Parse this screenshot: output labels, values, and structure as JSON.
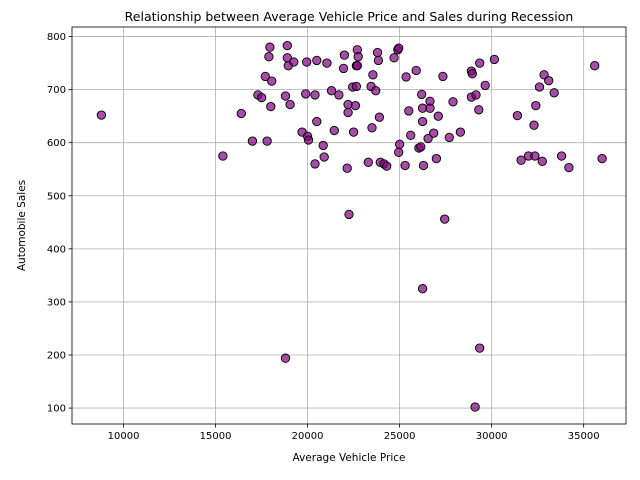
{
  "chart_data": {
    "type": "scatter",
    "title": "Relationship between Average Vehicle Price and Sales during Recession",
    "xlabel": "Average Vehicle Price",
    "ylabel": "Automobile Sales",
    "xlim": [
      7200,
      37300
    ],
    "ylim": [
      70,
      818
    ],
    "xticks": [
      10000,
      15000,
      20000,
      25000,
      30000,
      35000
    ],
    "yticks": [
      100,
      200,
      300,
      400,
      500,
      600,
      700,
      800
    ],
    "grid": true,
    "marker_color": "#800080",
    "marker_edge": "#000000",
    "points": [
      [
        8800,
        652
      ],
      [
        15400,
        575
      ],
      [
        16400,
        655
      ],
      [
        17000,
        603
      ],
      [
        17300,
        690
      ],
      [
        17500,
        685
      ],
      [
        17700,
        725
      ],
      [
        17800,
        603
      ],
      [
        17900,
        762
      ],
      [
        17950,
        780
      ],
      [
        18000,
        668
      ],
      [
        18050,
        716
      ],
      [
        18800,
        194
      ],
      [
        18800,
        688
      ],
      [
        18900,
        760
      ],
      [
        18900,
        783
      ],
      [
        18950,
        745
      ],
      [
        19050,
        672
      ],
      [
        19250,
        752
      ],
      [
        19700,
        620
      ],
      [
        19900,
        692
      ],
      [
        19950,
        752
      ],
      [
        20000,
        612
      ],
      [
        20050,
        605
      ],
      [
        20400,
        560
      ],
      [
        20400,
        690
      ],
      [
        20500,
        640
      ],
      [
        20500,
        755
      ],
      [
        20850,
        595
      ],
      [
        20900,
        573
      ],
      [
        21050,
        750
      ],
      [
        21300,
        698
      ],
      [
        21450,
        623
      ],
      [
        21700,
        690
      ],
      [
        21950,
        740
      ],
      [
        22000,
        765
      ],
      [
        22150,
        552
      ],
      [
        22200,
        672
      ],
      [
        22200,
        657
      ],
      [
        22250,
        465
      ],
      [
        22450,
        705
      ],
      [
        22500,
        620
      ],
      [
        22600,
        670
      ],
      [
        22650,
        745
      ],
      [
        22650,
        706
      ],
      [
        22700,
        775
      ],
      [
        22700,
        745
      ],
      [
        22750,
        762
      ],
      [
        23300,
        563
      ],
      [
        23450,
        706
      ],
      [
        23500,
        628
      ],
      [
        23550,
        728
      ],
      [
        23700,
        698
      ],
      [
        23800,
        770
      ],
      [
        23850,
        755
      ],
      [
        23900,
        648
      ],
      [
        23950,
        563
      ],
      [
        24150,
        560
      ],
      [
        24300,
        556
      ],
      [
        24700,
        760
      ],
      [
        24900,
        775
      ],
      [
        24950,
        778
      ],
      [
        24950,
        582
      ],
      [
        25000,
        597
      ],
      [
        25300,
        557
      ],
      [
        25350,
        724
      ],
      [
        25500,
        660
      ],
      [
        25600,
        614
      ],
      [
        25900,
        736
      ],
      [
        26050,
        590
      ],
      [
        26150,
        592
      ],
      [
        26200,
        691
      ],
      [
        26250,
        640
      ],
      [
        26250,
        665
      ],
      [
        26250,
        325
      ],
      [
        26300,
        557
      ],
      [
        26550,
        608
      ],
      [
        26650,
        678
      ],
      [
        26650,
        665
      ],
      [
        26850,
        618
      ],
      [
        27000,
        570
      ],
      [
        27100,
        650
      ],
      [
        27350,
        725
      ],
      [
        27450,
        456
      ],
      [
        27700,
        610
      ],
      [
        27900,
        677
      ],
      [
        28300,
        620
      ],
      [
        28900,
        735
      ],
      [
        28900,
        686
      ],
      [
        28950,
        730
      ],
      [
        29100,
        102
      ],
      [
        29150,
        690
      ],
      [
        29300,
        662
      ],
      [
        29350,
        750
      ],
      [
        29350,
        213
      ],
      [
        29650,
        708
      ],
      [
        30150,
        757
      ],
      [
        31400,
        651
      ],
      [
        31600,
        567
      ],
      [
        32000,
        575
      ],
      [
        32300,
        633
      ],
      [
        32350,
        575
      ],
      [
        32400,
        670
      ],
      [
        32600,
        705
      ],
      [
        32750,
        565
      ],
      [
        32850,
        728
      ],
      [
        33100,
        717
      ],
      [
        33400,
        694
      ],
      [
        33800,
        575
      ],
      [
        34200,
        553
      ],
      [
        35600,
        745
      ],
      [
        36000,
        570
      ]
    ]
  }
}
